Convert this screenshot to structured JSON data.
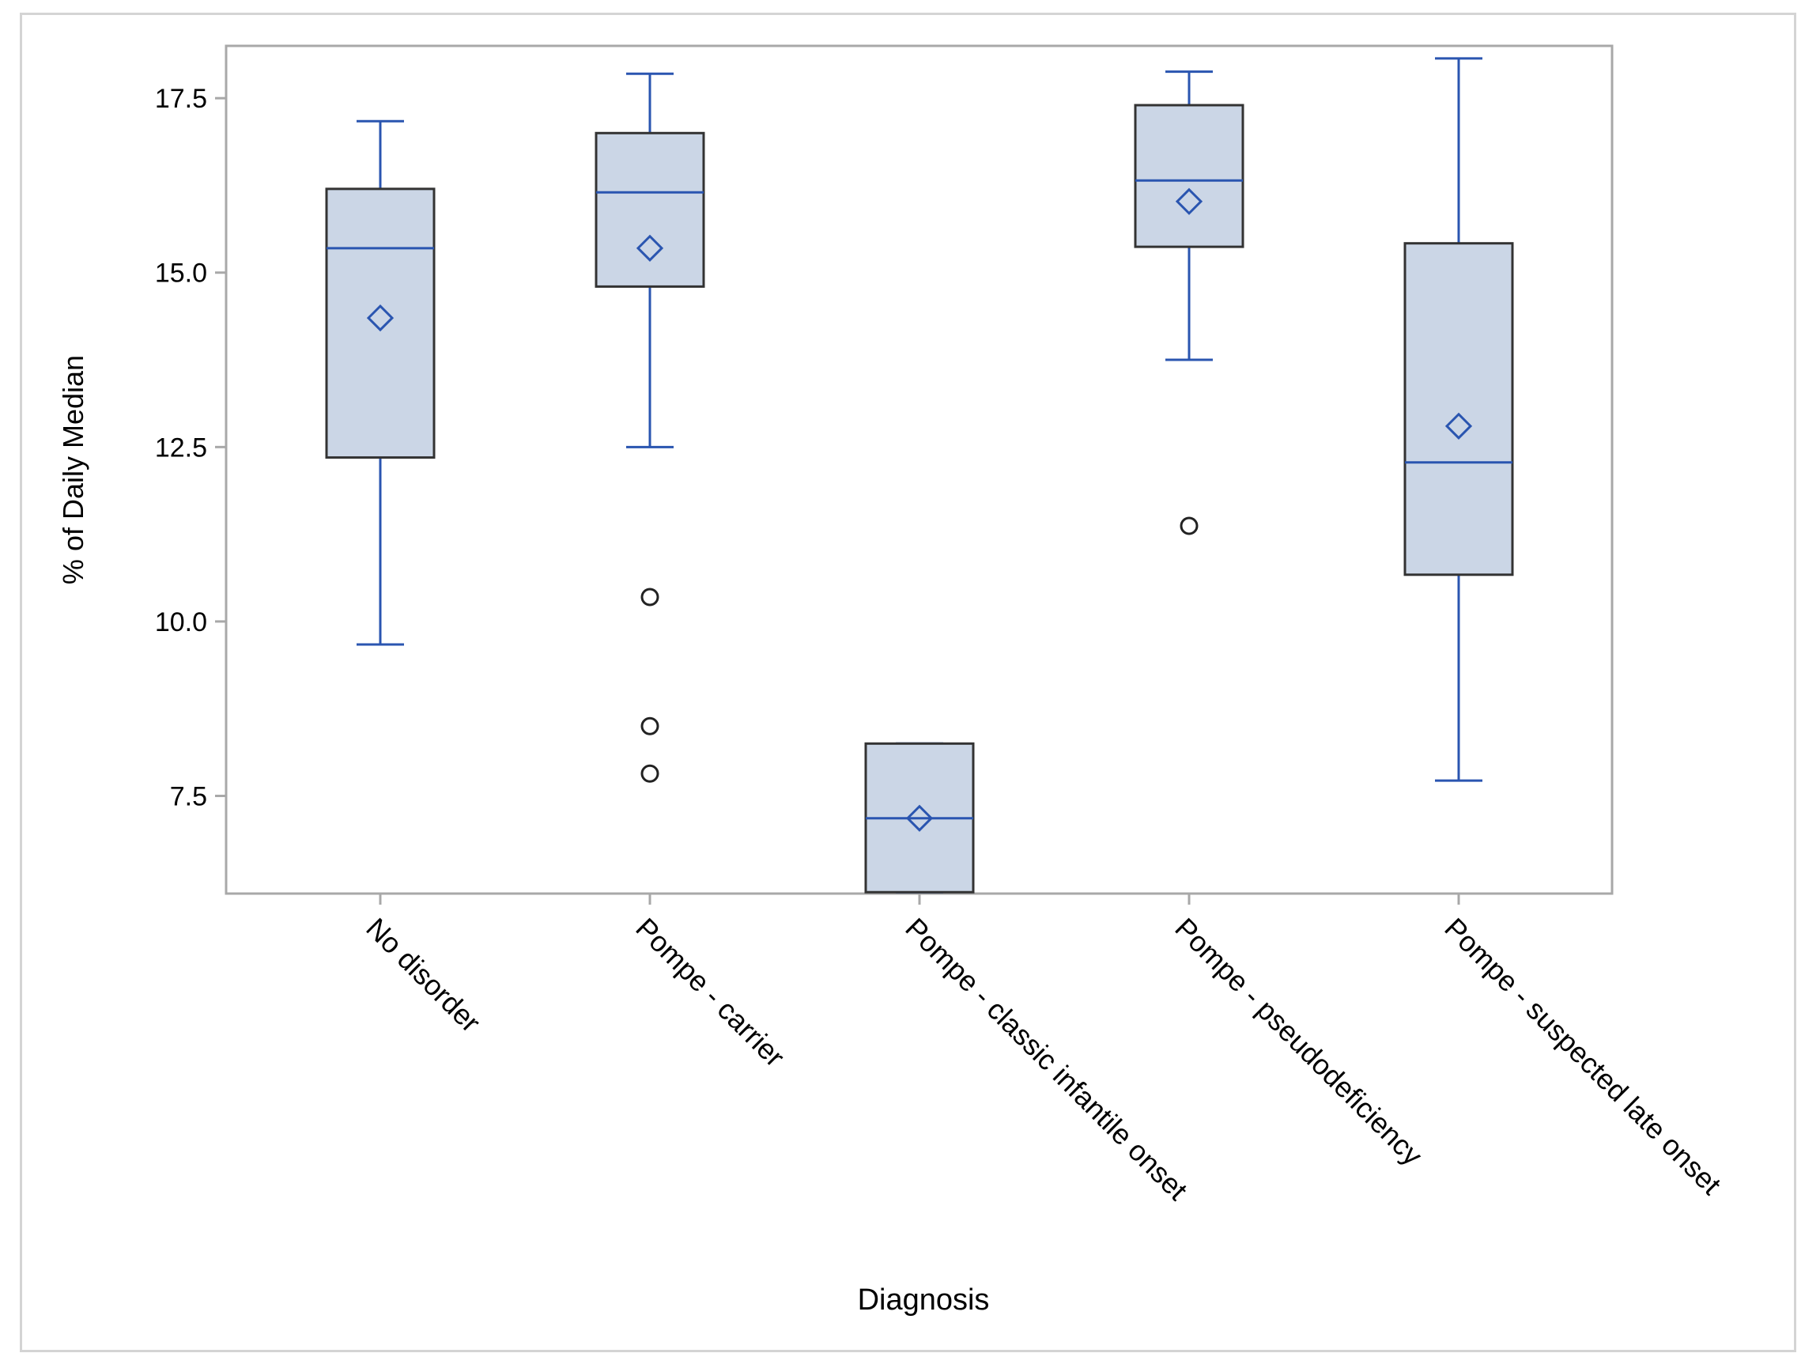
{
  "chart_data": {
    "type": "box",
    "title": "",
    "xlabel": "Diagnosis",
    "ylabel": "% of Daily Median",
    "ylim": [
      6.1,
      18.25
    ],
    "yticks": [
      7.5,
      10.0,
      12.5,
      15.0,
      17.5
    ],
    "ytick_labels": [
      "7.5",
      "10.0",
      "12.5",
      "15.0",
      "17.5"
    ],
    "grid": false,
    "legend": "none",
    "categories": [
      "No disorder",
      "Pompe - carrier",
      "Pompe - classic infantile onset",
      "Pompe - pseudodeficiency",
      "Pompe - suspected late onset"
    ],
    "boxes": [
      {
        "whisker_low": 9.67,
        "q1": 12.35,
        "median": 15.35,
        "q3": 16.2,
        "whisker_high": 17.17,
        "mean": 14.35,
        "outliers": []
      },
      {
        "whisker_low": 12.5,
        "q1": 14.8,
        "median": 16.15,
        "q3": 17.0,
        "whisker_high": 17.85,
        "mean": 15.35,
        "outliers": [
          10.35,
          8.5,
          7.82
        ]
      },
      {
        "whisker_low": 6.12,
        "q1": 6.12,
        "median": 7.18,
        "q3": 8.25,
        "whisker_high": 8.25,
        "mean": 7.18,
        "outliers": []
      },
      {
        "whisker_low": 13.75,
        "q1": 15.37,
        "median": 16.32,
        "q3": 17.4,
        "whisker_high": 17.88,
        "mean": 16.02,
        "outliers": [
          11.37
        ]
      },
      {
        "whisker_low": 7.72,
        "q1": 10.67,
        "median": 12.28,
        "q3": 15.42,
        "whisker_high": 18.07,
        "mean": 12.8,
        "outliers": []
      }
    ]
  },
  "colors": {
    "box_fill": "#cbd6e6",
    "box_edge": "#333333",
    "whisker": "#2a55b0",
    "median": "#2a55b0",
    "mean_marker": "#2a55b0",
    "outlier": "#222222",
    "axis": "#a8a8a8",
    "text": "#000000"
  }
}
